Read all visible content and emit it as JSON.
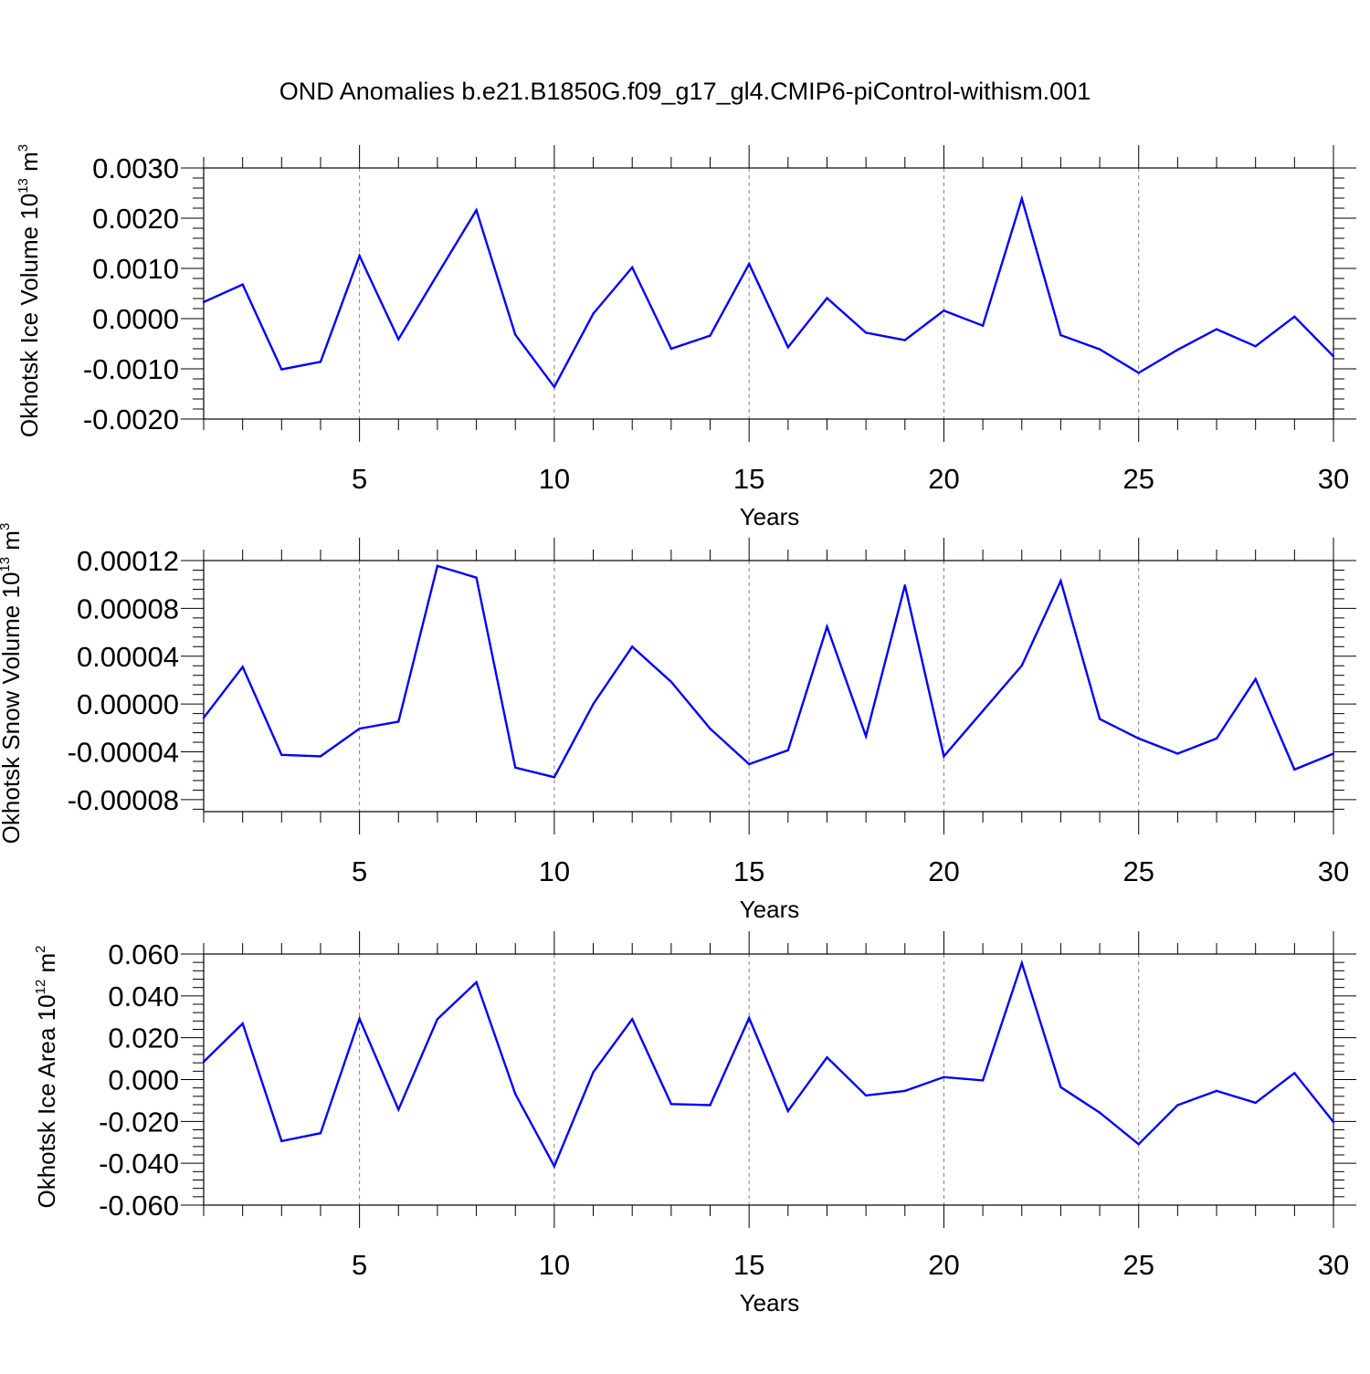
{
  "title": "OND Anomalies b.e21.B1850G.f09_g17_gl4.CMIP6-piControl-withism.001",
  "colors": {
    "line": "#0000ff",
    "axis": "#000000",
    "grid": "#808080"
  },
  "chart_data": [
    {
      "type": "line",
      "ylabel": {
        "text": "Okhotsk Ice Volume 10",
        "sup": "13",
        "unit": " m",
        "unit_sup": "3"
      },
      "xlabel": "Years",
      "xlim": [
        1,
        30
      ],
      "ylim": [
        -0.002,
        0.003
      ],
      "grid": "vertical dashed at 5,10,15,20,25",
      "xticks": [
        5,
        10,
        15,
        20,
        25,
        30
      ],
      "xtick_labels": [
        "5",
        "10",
        "15",
        "20",
        "25",
        "30"
      ],
      "yticks": [
        -0.002,
        -0.001,
        0.0,
        0.001,
        0.002,
        0.003
      ],
      "ytick_labels": [
        "-0.0020",
        "-0.0010",
        "0.0000",
        "0.0010",
        "0.0020",
        "0.0030"
      ],
      "x": [
        1,
        2,
        3,
        4,
        5,
        6,
        7,
        8,
        9,
        10,
        11,
        12,
        13,
        14,
        15,
        16,
        17,
        18,
        19,
        20,
        21,
        22,
        23,
        24,
        25,
        26,
        27,
        28,
        29,
        30
      ],
      "values": [
        0.00033,
        0.00068,
        -0.00101,
        -0.00086,
        0.00125,
        -0.00041,
        0.00088,
        0.00216,
        -0.00032,
        -0.00136,
        0.0001,
        0.00102,
        -0.0006,
        -0.00034,
        0.00109,
        -0.00057,
        0.00041,
        -0.00028,
        -0.00043,
        0.00016,
        -0.00014,
        0.00239,
        -0.00033,
        -0.00061,
        -0.00108,
        -0.00062,
        -0.00021,
        -0.00055,
        4e-05,
        -0.00075
      ]
    },
    {
      "type": "line",
      "ylabel": {
        "text": "Okhotsk Snow Volume 10",
        "sup": "13",
        "unit": " m",
        "unit_sup": "3"
      },
      "xlabel": "Years",
      "xlim": [
        1,
        30
      ],
      "ylim": [
        -9e-05,
        0.00012
      ],
      "grid": "vertical dashed at 5,10,15,20,25",
      "xticks": [
        5,
        10,
        15,
        20,
        25,
        30
      ],
      "xtick_labels": [
        "5",
        "10",
        "15",
        "20",
        "25",
        "30"
      ],
      "yticks": [
        -8e-05,
        -4e-05,
        0.0,
        4e-05,
        8e-05,
        0.00012
      ],
      "ytick_labels": [
        "-0.00008",
        "-0.00004",
        "0.00000",
        "0.00004",
        "0.00008",
        "0.00012"
      ],
      "x": [
        1,
        2,
        3,
        4,
        5,
        6,
        7,
        8,
        9,
        10,
        11,
        12,
        13,
        14,
        15,
        16,
        17,
        18,
        19,
        20,
        21,
        22,
        23,
        24,
        25,
        26,
        27,
        28,
        29,
        30
      ],
      "values": [
        -1.15e-05,
        3.1e-05,
        -4.25e-05,
        -4.37e-05,
        -2.06e-05,
        -1.47e-05,
        0.0001155,
        0.0001057,
        -5.32e-05,
        -6.12e-05,
        0.0,
        4.8e-05,
        1.86e-05,
        -2.06e-05,
        -5.03e-05,
        -3.87e-05,
        6.47e-05,
        -2.69e-05,
        9.92e-05,
        -4.37e-05,
        -5.8e-06,
        3.22e-05,
        0.000103,
        -1.26e-05,
        -2.88e-05,
        -4.15e-05,
        -2.88e-05,
        2.09e-05,
        -5.48e-05,
        -4.15e-05
      ]
    },
    {
      "type": "line",
      "ylabel": {
        "text": "Okhotsk Ice Area 10",
        "sup": "12",
        "unit": " m",
        "unit_sup": "2"
      },
      "xlabel": "Years",
      "xlim": [
        1,
        30
      ],
      "ylim": [
        -0.06,
        0.06
      ],
      "grid": "vertical dashed at 5,10,15,20,25",
      "xticks": [
        5,
        10,
        15,
        20,
        25,
        30
      ],
      "xtick_labels": [
        "5",
        "10",
        "15",
        "20",
        "25",
        "30"
      ],
      "yticks": [
        -0.06,
        -0.04,
        -0.02,
        0.0,
        0.02,
        0.04,
        0.06
      ],
      "ytick_labels": [
        "-0.060",
        "-0.040",
        "-0.020",
        "0.000",
        "0.020",
        "0.040",
        "0.060"
      ],
      "x": [
        1,
        2,
        3,
        4,
        5,
        6,
        7,
        8,
        9,
        10,
        11,
        12,
        13,
        14,
        15,
        16,
        17,
        18,
        19,
        20,
        21,
        22,
        23,
        24,
        25,
        26,
        27,
        28,
        29,
        30
      ],
      "values": [
        0.0085,
        0.0268,
        -0.0294,
        -0.0256,
        0.0291,
        -0.0143,
        0.0289,
        0.0465,
        -0.0069,
        -0.0414,
        0.0036,
        0.0289,
        -0.0117,
        -0.0122,
        0.0294,
        -0.015,
        0.0106,
        -0.0076,
        -0.0054,
        0.0012,
        -0.0004,
        0.0557,
        -0.0036,
        -0.0158,
        -0.0309,
        -0.0122,
        -0.0054,
        -0.0111,
        0.0031,
        -0.0203
      ]
    }
  ]
}
